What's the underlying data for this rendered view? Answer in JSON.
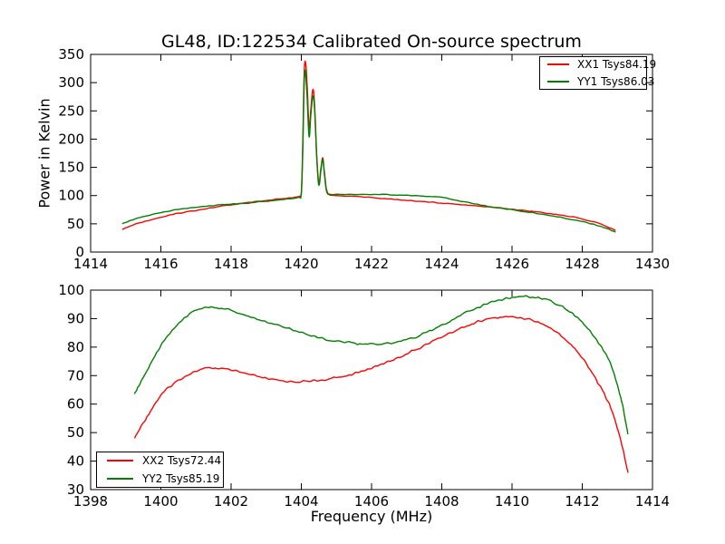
{
  "figure": {
    "background": "#ffffff",
    "frame_color": "#000000"
  },
  "chart_data": [
    {
      "type": "line",
      "title": "GL48, ID:122534 Calibrated On-source spectrum",
      "xlabel": "",
      "ylabel": "Power in Kelvin",
      "xlim": [
        1414,
        1430
      ],
      "ylim": [
        0,
        350
      ],
      "xticks": [
        1414,
        1416,
        1418,
        1420,
        1422,
        1424,
        1426,
        1428,
        1430
      ],
      "yticks": [
        0,
        50,
        100,
        150,
        200,
        250,
        300,
        350
      ],
      "grid": false,
      "legend_position": "upper right",
      "noise_amplitude": 0.9,
      "series": [
        {
          "name": "XX1",
          "legend_label": "XX1 Tsys84.19",
          "color": "#ff0000",
          "points": [
            [
              1414.9,
              40
            ],
            [
              1415.3,
              50
            ],
            [
              1415.7,
              57
            ],
            [
              1416.1,
              63
            ],
            [
              1416.5,
              68.5
            ],
            [
              1417,
              74
            ],
            [
              1417.5,
              79
            ],
            [
              1418,
              83.5
            ],
            [
              1418.5,
              87.5
            ],
            [
              1419,
              91
            ],
            [
              1419.5,
              94.5
            ],
            [
              1419.8,
              96.5
            ],
            [
              1419.95,
              98.5
            ],
            [
              1420,
              105
            ],
            [
              1420.04,
              190
            ],
            [
              1420.08,
              315
            ],
            [
              1420.12,
              336
            ],
            [
              1420.17,
              290
            ],
            [
              1420.22,
              220
            ],
            [
              1420.27,
              252
            ],
            [
              1420.33,
              288
            ],
            [
              1420.38,
              258
            ],
            [
              1420.44,
              170
            ],
            [
              1420.5,
              122
            ],
            [
              1420.56,
              150
            ],
            [
              1420.61,
              167
            ],
            [
              1420.66,
              140
            ],
            [
              1420.72,
              110
            ],
            [
              1420.8,
              101.5
            ],
            [
              1421,
              99.8
            ],
            [
              1421.5,
              98.5
            ],
            [
              1422,
              96.5
            ],
            [
              1422.5,
              94
            ],
            [
              1423,
              91.5
            ],
            [
              1423.5,
              89.3
            ],
            [
              1424,
              87
            ],
            [
              1424.5,
              84.5
            ],
            [
              1425,
              82
            ],
            [
              1425.6,
              78.5
            ],
            [
              1426,
              75.8
            ],
            [
              1426.5,
              72.5
            ],
            [
              1427,
              69
            ],
            [
              1427.5,
              64.5
            ],
            [
              1428,
              58.5
            ],
            [
              1428.5,
              50
            ],
            [
              1428.95,
              38.5
            ]
          ]
        },
        {
          "name": "YY1",
          "legend_label": "YY1 Tsys86.03",
          "color": "#008000",
          "points": [
            [
              1414.9,
              50
            ],
            [
              1415.3,
              59
            ],
            [
              1415.7,
              65.5
            ],
            [
              1416.1,
              71
            ],
            [
              1416.5,
              75.5
            ],
            [
              1417,
              79.5
            ],
            [
              1417.5,
              82.5
            ],
            [
              1418,
              84.8
            ],
            [
              1418.5,
              87
            ],
            [
              1419,
              90
            ],
            [
              1419.5,
              93.5
            ],
            [
              1419.8,
              95.5
            ],
            [
              1419.95,
              97.5
            ],
            [
              1420,
              103
            ],
            [
              1420.04,
              175
            ],
            [
              1420.08,
              295
            ],
            [
              1420.11,
              322
            ],
            [
              1420.16,
              280
            ],
            [
              1420.22,
              205
            ],
            [
              1420.27,
              242
            ],
            [
              1420.33,
              277
            ],
            [
              1420.38,
              250
            ],
            [
              1420.44,
              165
            ],
            [
              1420.5,
              118
            ],
            [
              1420.56,
              146
            ],
            [
              1420.61,
              164
            ],
            [
              1420.66,
              136
            ],
            [
              1420.72,
              107
            ],
            [
              1420.8,
              102
            ],
            [
              1421,
              101.8
            ],
            [
              1421.5,
              102.2
            ],
            [
              1422,
              102
            ],
            [
              1422.5,
              101.5
            ],
            [
              1423,
              100.5
            ],
            [
              1423.5,
              99
            ],
            [
              1424,
              96.5
            ],
            [
              1424.5,
              90.5
            ],
            [
              1425,
              84.5
            ],
            [
              1425.6,
              78.3
            ],
            [
              1426,
              74.8
            ],
            [
              1426.5,
              70.5
            ],
            [
              1427,
              65.5
            ],
            [
              1427.5,
              60
            ],
            [
              1428,
              54
            ],
            [
              1428.5,
              46
            ],
            [
              1428.95,
              35.5
            ]
          ]
        }
      ]
    },
    {
      "type": "line",
      "title": "",
      "xlabel": "Frequency (MHz)",
      "ylabel": "",
      "xlim": [
        1398,
        1414
      ],
      "ylim": [
        30,
        100
      ],
      "xticks": [
        1398,
        1400,
        1402,
        1404,
        1406,
        1408,
        1410,
        1412,
        1414
      ],
      "yticks": [
        30,
        40,
        50,
        60,
        70,
        80,
        90,
        100
      ],
      "grid": false,
      "legend_position": "lower left",
      "noise_amplitude": 0.45,
      "series": [
        {
          "name": "XX2",
          "legend_label": "XX2 Tsys72.44",
          "color": "#ff0000",
          "points": [
            [
              1399.25,
              48
            ],
            [
              1399.6,
              55.5
            ],
            [
              1400,
              63
            ],
            [
              1400.4,
              67.5
            ],
            [
              1400.8,
              70.5
            ],
            [
              1401.2,
              72.3
            ],
            [
              1401.6,
              72.6
            ],
            [
              1402,
              71.8
            ],
            [
              1402.4,
              70.7
            ],
            [
              1402.8,
              69.5
            ],
            [
              1403.2,
              68.5
            ],
            [
              1403.6,
              68
            ],
            [
              1404,
              67.9
            ],
            [
              1404.4,
              68.2
            ],
            [
              1404.8,
              68.8
            ],
            [
              1405.2,
              69.8
            ],
            [
              1405.6,
              71
            ],
            [
              1406,
              72.7
            ],
            [
              1406.4,
              74.6
            ],
            [
              1406.8,
              76.6
            ],
            [
              1407.2,
              78.8
            ],
            [
              1407.6,
              81.2
            ],
            [
              1408,
              83.6
            ],
            [
              1408.4,
              85.9
            ],
            [
              1408.8,
              87.9
            ],
            [
              1409.2,
              89.5
            ],
            [
              1409.6,
              90.4
            ],
            [
              1410,
              90.6
            ],
            [
              1410.4,
              90
            ],
            [
              1410.8,
              88.5
            ],
            [
              1411.2,
              85.8
            ],
            [
              1411.6,
              81.8
            ],
            [
              1412,
              76.2
            ],
            [
              1412.4,
              68.6
            ],
            [
              1412.8,
              59
            ],
            [
              1413.1,
              47
            ],
            [
              1413.3,
              36
            ]
          ]
        },
        {
          "name": "YY2",
          "legend_label": "YY2 Tsys85.19",
          "color": "#008000",
          "points": [
            [
              1399.25,
              63.5
            ],
            [
              1399.6,
              71.5
            ],
            [
              1400,
              80.5
            ],
            [
              1400.4,
              87
            ],
            [
              1400.8,
              91.5
            ],
            [
              1401.2,
              93.7
            ],
            [
              1401.6,
              93.9
            ],
            [
              1402,
              92.8
            ],
            [
              1402.4,
              91.3
            ],
            [
              1402.8,
              89.7
            ],
            [
              1403.2,
              88.2
            ],
            [
              1403.6,
              86.7
            ],
            [
              1404,
              85.2
            ],
            [
              1404.4,
              83.8
            ],
            [
              1404.8,
              82.6
            ],
            [
              1405.2,
              81.8
            ],
            [
              1405.6,
              81.2
            ],
            [
              1406,
              81
            ],
            [
              1406.4,
              81.3
            ],
            [
              1406.8,
              82
            ],
            [
              1407.2,
              83.3
            ],
            [
              1407.6,
              85.3
            ],
            [
              1408,
              87.8
            ],
            [
              1408.4,
              90.3
            ],
            [
              1408.8,
              92.7
            ],
            [
              1409.2,
              94.8
            ],
            [
              1409.6,
              96.4
            ],
            [
              1410,
              97.4
            ],
            [
              1410.4,
              97.7
            ],
            [
              1410.8,
              97.2
            ],
            [
              1411.2,
              95.6
            ],
            [
              1411.6,
              92.8
            ],
            [
              1412,
              88.6
            ],
            [
              1412.4,
              82.6
            ],
            [
              1412.8,
              74.2
            ],
            [
              1413.1,
              62
            ],
            [
              1413.3,
              49.5
            ]
          ]
        }
      ]
    }
  ]
}
